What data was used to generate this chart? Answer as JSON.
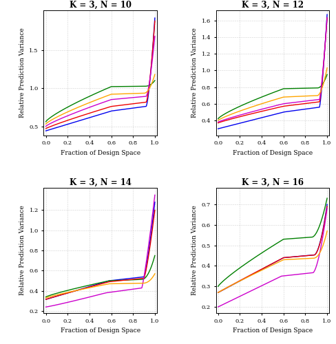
{
  "titles": [
    "K = 3, N = 10",
    "K = 3, N = 12",
    "K = 3, N = 14",
    "K = 3, N = 16"
  ],
  "xlabel": "Fraction of Design Space",
  "ylabel": "Relative Prediction Variance",
  "colors": {
    "blue": "#0000EE",
    "green": "#008000",
    "red": "#EE0000",
    "purple": "#CC00CC",
    "orange": "#FFA500"
  },
  "line_width": 1.0,
  "grid_color": "#AAAAAA",
  "background_color": "#FFFFFF",
  "title_fontsize": 8.5,
  "label_fontsize": 6.5,
  "tick_fontsize": 6.0
}
